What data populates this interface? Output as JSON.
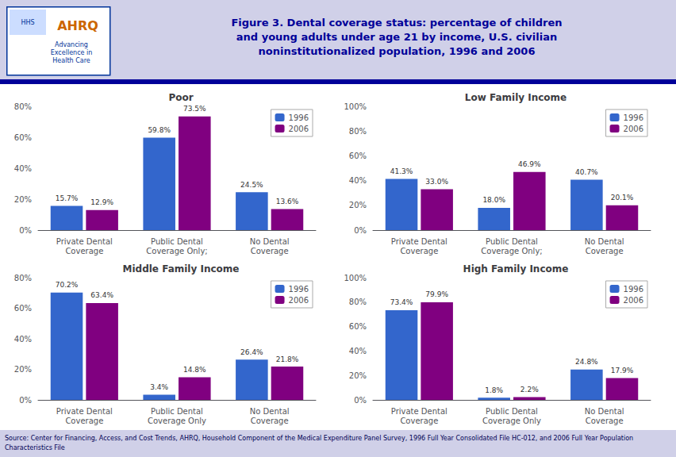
{
  "title": "Figure 3. Dental coverage status: percentage of children\nand young adults under age 21 by income, U.S. civilian\nnoninstitutionalized population, 1996 and 2006",
  "annotations": [
    "HHS",
    "AHRQ",
    "Advancing\nExcellence in\nHealth Care",
    "Source: Center for Financing, Access, and Cost Trends, AHRQ, Household Component of the Medical Expenditure Panel Survey, 1996 Full Year Consolidated File HC-012, and 2006 Full Year Population Characteristics File"
  ],
  "chart_data": [
    {
      "type": "bar",
      "title": "Poor",
      "categories": [
        "Private Dental\nCoverage",
        "Public Dental\nCoverage Only;",
        "No Dental\nCoverage"
      ],
      "series": [
        {
          "name": "1996",
          "color": "#3366CC",
          "values": [
            0.157,
            0.598,
            0.245
          ],
          "value_labels": [
            "15.7%",
            "59.8%",
            "24.5%"
          ]
        },
        {
          "name": "2006",
          "color": "#800080",
          "values": [
            0.129,
            0.735,
            0.136
          ],
          "value_labels": [
            "12.9%",
            "73.5%",
            "13.6%"
          ]
        }
      ],
      "ylim": [
        0,
        0.8
      ],
      "yticks": [
        {
          "value": 0,
          "label": "0%"
        },
        {
          "value": 0.2,
          "label": "20%"
        },
        {
          "value": 0.4,
          "label": "40%"
        },
        {
          "value": 0.6,
          "label": "60%"
        },
        {
          "value": 0.8,
          "label": "80%"
        }
      ],
      "grid": false,
      "legend": "upper right",
      "data_labels": true
    },
    {
      "type": "bar",
      "title": "Low Family Income",
      "categories": [
        "Private Dental\nCoverage",
        "Public Dental\nCoverage Only;",
        "No Dental\nCoverage"
      ],
      "series": [
        {
          "name": "1996",
          "color": "#3366CC",
          "values": [
            0.413,
            0.18,
            0.407
          ],
          "value_labels": [
            "41.3%",
            "18.0%",
            "40.7%"
          ]
        },
        {
          "name": "2006",
          "color": "#800080",
          "values": [
            0.33,
            0.469,
            0.201
          ],
          "value_labels": [
            "33.0%",
            "46.9%",
            "20.1%"
          ]
        }
      ],
      "ylim": [
        0,
        1.0
      ],
      "yticks": [
        {
          "value": 0,
          "label": "0%"
        },
        {
          "value": 0.2,
          "label": "20%"
        },
        {
          "value": 0.4,
          "label": "40%"
        },
        {
          "value": 0.6,
          "label": "60%"
        },
        {
          "value": 0.8,
          "label": "80%"
        },
        {
          "value": 1.0,
          "label": "100%"
        }
      ],
      "grid": false,
      "legend": "upper right",
      "data_labels": true
    },
    {
      "type": "bar",
      "title": "Middle Family Income",
      "categories": [
        "Private Dental\nCoverage",
        "Public Dental\nCoverage Only",
        "No Dental\nCoverage"
      ],
      "series": [
        {
          "name": "1996",
          "color": "#3366CC",
          "values": [
            0.702,
            0.034,
            0.264
          ],
          "value_labels": [
            "70.2%",
            "3.4%",
            "26.4%"
          ]
        },
        {
          "name": "2006",
          "color": "#800080",
          "values": [
            0.634,
            0.148,
            0.218
          ],
          "value_labels": [
            "63.4%",
            "14.8%",
            "21.8%"
          ]
        }
      ],
      "ylim": [
        0,
        0.8
      ],
      "yticks": [
        {
          "value": 0,
          "label": "0%"
        },
        {
          "value": 0.2,
          "label": "20%"
        },
        {
          "value": 0.4,
          "label": "40%"
        },
        {
          "value": 0.6,
          "label": "60%"
        },
        {
          "value": 0.8,
          "label": "80%"
        }
      ],
      "grid": false,
      "legend": "upper right",
      "data_labels": true
    },
    {
      "type": "bar",
      "title": "High Family Income",
      "categories": [
        "Private Dental\nCoverage",
        "Public Dental\nCoverage Only",
        "No Dental\nCoverage"
      ],
      "series": [
        {
          "name": "1996",
          "color": "#3366CC",
          "values": [
            0.734,
            0.018,
            0.248
          ],
          "value_labels": [
            "73.4%",
            "1.8%",
            "24.8%"
          ]
        },
        {
          "name": "2006",
          "color": "#800080",
          "values": [
            0.799,
            0.022,
            0.179
          ],
          "value_labels": [
            "79.9%",
            "2.2%",
            "17.9%"
          ]
        }
      ],
      "ylim": [
        0,
        1.0
      ],
      "yticks": [
        {
          "value": 0,
          "label": "0%"
        },
        {
          "value": 0.2,
          "label": "20%"
        },
        {
          "value": 0.4,
          "label": "40%"
        },
        {
          "value": 0.6,
          "label": "60%"
        },
        {
          "value": 0.8,
          "label": "80%"
        },
        {
          "value": 1.0,
          "label": "100%"
        }
      ],
      "grid": false,
      "legend": "upper right",
      "data_labels": true
    }
  ]
}
